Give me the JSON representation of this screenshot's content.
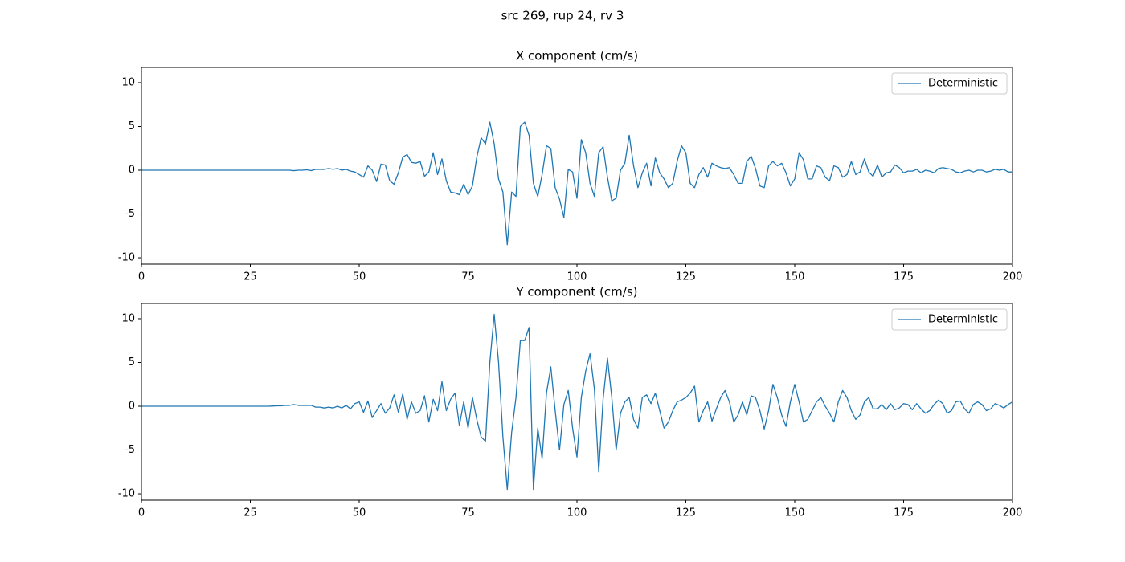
{
  "title": "src 269, rup 24, rv 3",
  "chart_data": [
    {
      "type": "line",
      "title": "X component (cm/s)",
      "x": [
        0,
        1,
        2,
        3,
        4,
        5,
        6,
        7,
        8,
        9,
        10,
        11,
        12,
        13,
        14,
        15,
        16,
        17,
        18,
        19,
        20,
        21,
        22,
        23,
        24,
        25,
        26,
        27,
        28,
        29,
        30,
        31,
        32,
        33,
        34,
        35,
        36,
        37,
        38,
        39,
        40,
        41,
        42,
        43,
        44,
        45,
        46,
        47,
        48,
        49,
        50,
        51,
        52,
        53,
        54,
        55,
        56,
        57,
        58,
        59,
        60,
        61,
        62,
        63,
        64,
        65,
        66,
        67,
        68,
        69,
        70,
        71,
        72,
        73,
        74,
        75,
        76,
        77,
        78,
        79,
        80,
        81,
        82,
        83,
        84,
        85,
        86,
        87,
        88,
        89,
        90,
        91,
        92,
        93,
        94,
        95,
        96,
        97,
        98,
        99,
        100,
        101,
        102,
        103,
        104,
        105,
        106,
        107,
        108,
        109,
        110,
        111,
        112,
        113,
        114,
        115,
        116,
        117,
        118,
        119,
        120,
        121,
        122,
        123,
        124,
        125,
        126,
        127,
        128,
        129,
        130,
        131,
        132,
        133,
        134,
        135,
        136,
        137,
        138,
        139,
        140,
        141,
        142,
        143,
        144,
        145,
        146,
        147,
        148,
        149,
        150,
        151,
        152,
        153,
        154,
        155,
        156,
        157,
        158,
        159,
        160,
        161,
        162,
        163,
        164,
        165,
        166,
        167,
        168,
        169,
        170,
        171,
        172,
        173,
        174,
        175,
        176,
        177,
        178,
        179,
        180,
        181,
        182,
        183,
        184,
        185,
        186,
        187,
        188,
        189,
        190,
        191,
        192,
        193,
        194,
        195,
        196,
        197,
        198,
        199,
        200
      ],
      "series": [
        {
          "name": "Deterministic",
          "color": "#1f77b4",
          "values": [
            0,
            0,
            0,
            0,
            0,
            0,
            0,
            0,
            0,
            0,
            0,
            0,
            0,
            0,
            0,
            0,
            0,
            0,
            0,
            0,
            0,
            0,
            0,
            0,
            0,
            0,
            0,
            0,
            0,
            0,
            0,
            0,
            0,
            0,
            0,
            -0.05,
            0,
            0,
            0.05,
            -0.05,
            0.1,
            0.1,
            0.1,
            0.2,
            0.1,
            0.2,
            0,
            0.1,
            -0.1,
            -0.2,
            -0.5,
            -0.8,
            0.5,
            0,
            -1.3,
            0.7,
            0.6,
            -1.2,
            -1.6,
            -0.3,
            1.5,
            1.8,
            0.9,
            0.8,
            1.0,
            -0.7,
            -0.2,
            2.0,
            -0.5,
            1.3,
            -1.2,
            -2.5,
            -2.6,
            -2.8,
            -1.6,
            -2.8,
            -1.8,
            1.5,
            3.7,
            3.0,
            5.5,
            3.0,
            -1.0,
            -2.5,
            -8.5,
            -2.5,
            -3.0,
            5.0,
            5.5,
            4.0,
            -1.5,
            -3.0,
            -0.5,
            2.8,
            2.5,
            -2.0,
            -3.3,
            -5.4,
            0.1,
            -0.2,
            -3.2,
            3.5,
            2.0,
            -1.5,
            -3.0,
            2.0,
            2.7,
            -0.8,
            -3.5,
            -3.2,
            0,
            0.8,
            4.0,
            0.5,
            -2.0,
            -0.3,
            0.8,
            -1.8,
            1.4,
            -0.3,
            -1.0,
            -2.0,
            -1.5,
            1.0,
            2.8,
            2.0,
            -1.5,
            -2.0,
            -0.5,
            0.3,
            -0.8,
            0.8,
            0.5,
            0.3,
            0.2,
            0.3,
            -0.5,
            -1.5,
            -1.5,
            1.0,
            1.6,
            0.2,
            -1.8,
            -2.0,
            0.5,
            1.0,
            0.5,
            0.8,
            -0.3,
            -1.8,
            -1.0,
            2.0,
            1.2,
            -1.0,
            -1.0,
            0.5,
            0.3,
            -0.8,
            -1.2,
            0.5,
            0.3,
            -0.8,
            -0.5,
            1.0,
            -0.5,
            -0.2,
            1.3,
            -0.2,
            -0.7,
            0.6,
            -0.8,
            -0.3,
            -0.2,
            0.6,
            0.3,
            -0.3,
            -0.1,
            -0.1,
            0.1,
            -0.3,
            0,
            -0.1,
            -0.3,
            0.2,
            0.3,
            0.2,
            0.1,
            -0.2,
            -0.3,
            -0.1,
            0,
            -0.2,
            0,
            0,
            -0.2,
            -0.1,
            0.1,
            0,
            0.1,
            -0.2,
            -0.2
          ]
        }
      ],
      "xlim": [
        0,
        200
      ],
      "ylim": [
        -10.73,
        11.74
      ],
      "xticks": [
        0,
        25,
        50,
        75,
        100,
        125,
        150,
        175,
        200
      ],
      "yticks": [
        -10,
        -5,
        0,
        5,
        10
      ],
      "legend": "upper right",
      "grid": false
    },
    {
      "type": "line",
      "title": "Y component (cm/s)",
      "x": [
        0,
        1,
        2,
        3,
        4,
        5,
        6,
        7,
        8,
        9,
        10,
        11,
        12,
        13,
        14,
        15,
        16,
        17,
        18,
        19,
        20,
        21,
        22,
        23,
        24,
        25,
        26,
        27,
        28,
        29,
        30,
        31,
        32,
        33,
        34,
        35,
        36,
        37,
        38,
        39,
        40,
        41,
        42,
        43,
        44,
        45,
        46,
        47,
        48,
        49,
        50,
        51,
        52,
        53,
        54,
        55,
        56,
        57,
        58,
        59,
        60,
        61,
        62,
        63,
        64,
        65,
        66,
        67,
        68,
        69,
        70,
        71,
        72,
        73,
        74,
        75,
        76,
        77,
        78,
        79,
        80,
        81,
        82,
        83,
        84,
        85,
        86,
        87,
        88,
        89,
        90,
        91,
        92,
        93,
        94,
        95,
        96,
        97,
        98,
        99,
        100,
        101,
        102,
        103,
        104,
        105,
        106,
        107,
        108,
        109,
        110,
        111,
        112,
        113,
        114,
        115,
        116,
        117,
        118,
        119,
        120,
        121,
        122,
        123,
        124,
        125,
        126,
        127,
        128,
        129,
        130,
        131,
        132,
        133,
        134,
        135,
        136,
        137,
        138,
        139,
        140,
        141,
        142,
        143,
        144,
        145,
        146,
        147,
        148,
        149,
        150,
        151,
        152,
        153,
        154,
        155,
        156,
        157,
        158,
        159,
        160,
        161,
        162,
        163,
        164,
        165,
        166,
        167,
        168,
        169,
        170,
        171,
        172,
        173,
        174,
        175,
        176,
        177,
        178,
        179,
        180,
        181,
        182,
        183,
        184,
        185,
        186,
        187,
        188,
        189,
        190,
        191,
        192,
        193,
        194,
        195,
        196,
        197,
        198,
        199,
        200
      ],
      "series": [
        {
          "name": "Deterministic",
          "color": "#1f77b4",
          "values": [
            0,
            0,
            0,
            0,
            0,
            0,
            0,
            0,
            0,
            0,
            0,
            0,
            0,
            0,
            0,
            0,
            0,
            0,
            0,
            0,
            0,
            0,
            0,
            0,
            0,
            0,
            0,
            0,
            0,
            0,
            0.02,
            0.05,
            0.05,
            0.1,
            0.1,
            0.2,
            0.1,
            0.1,
            0.1,
            0.1,
            -0.1,
            -0.1,
            -0.2,
            -0.1,
            -0.2,
            0,
            -0.2,
            0.1,
            -0.3,
            0.3,
            0.5,
            -0.7,
            0.6,
            -1.3,
            -0.5,
            0.3,
            -0.8,
            -0.2,
            1.3,
            -0.7,
            1.4,
            -1.5,
            0.5,
            -0.8,
            -0.5,
            1.2,
            -1.8,
            0.8,
            -0.5,
            2.8,
            -0.5,
            0.8,
            1.5,
            -2.2,
            0.5,
            -2.5,
            1.0,
            -1.5,
            -3.5,
            -4.0,
            5.0,
            10.5,
            5.0,
            -3.5,
            -9.5,
            -3.0,
            1.0,
            7.5,
            7.5,
            9.0,
            -9.5,
            -2.5,
            -6.0,
            1.5,
            4.5,
            -0.5,
            -5.0,
            0.2,
            1.8,
            -2.5,
            -5.8,
            1.0,
            4.0,
            6.0,
            2.0,
            -7.5,
            0.8,
            5.5,
            1.0,
            -5.0,
            -0.8,
            0.5,
            1.0,
            -1.5,
            -2.5,
            1.0,
            1.3,
            0.3,
            1.5,
            -0.5,
            -2.5,
            -1.8,
            -0.5,
            0.5,
            0.7,
            1.0,
            1.5,
            2.3,
            -1.8,
            -0.5,
            0.5,
            -1.7,
            -0.3,
            1.0,
            1.8,
            0.5,
            -1.8,
            -1.0,
            0.5,
            -1.0,
            1.2,
            1.0,
            -0.5,
            -2.6,
            -0.5,
            2.5,
            1.0,
            -1.0,
            -2.3,
            0.5,
            2.5,
            0.5,
            -1.8,
            -1.5,
            -0.5,
            0.5,
            1.0,
            0,
            -0.8,
            -1.8,
            0.5,
            1.8,
            1.0,
            -0.5,
            -1.5,
            -1.0,
            0.5,
            1.0,
            -0.3,
            -0.3,
            0.2,
            -0.4,
            0.3,
            -0.4,
            -0.2,
            0.3,
            0.2,
            -0.4,
            0.3,
            -0.3,
            -0.8,
            -0.5,
            0.2,
            0.7,
            0.3,
            -0.8,
            -0.5,
            0.5,
            0.6,
            -0.3,
            -0.8,
            0.2,
            0.5,
            0.2,
            -0.5,
            -0.3,
            0.3,
            0.1,
            -0.2,
            0.2,
            0.5
          ]
        }
      ],
      "xlim": [
        0,
        200
      ],
      "ylim": [
        -10.73,
        11.74
      ],
      "xticks": [
        0,
        25,
        50,
        75,
        100,
        125,
        150,
        175,
        200
      ],
      "yticks": [
        -10,
        -5,
        0,
        5,
        10
      ],
      "legend": "upper right",
      "grid": false
    }
  ]
}
